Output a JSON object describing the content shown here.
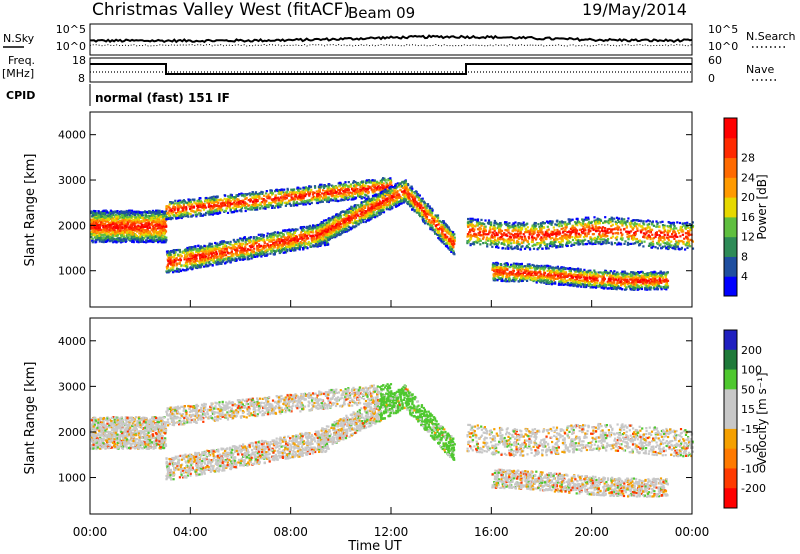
{
  "header": {
    "station": "Christmas Valley West (fitACF)",
    "beam": "Beam 09",
    "date": "19/May/2014"
  },
  "strip_panels": {
    "nsky_label": "N.Sky",
    "nsky_ticks": [
      "10^5",
      "10^0"
    ],
    "nsearch_label": "N.Search",
    "nsearch_ticks": [
      "10^5",
      "10^0"
    ],
    "freq_label_line1": "Freq.",
    "freq_label_line2": "[MHz]",
    "freq_ticks": [
      "18",
      "8"
    ],
    "nave_label": "Nave",
    "nave_ticks": [
      "60",
      "0"
    ],
    "cpid_label": "CPID",
    "cpid_text": "normal (fast) 151 IF"
  },
  "colors": {
    "power_scale": [
      "#0000ff",
      "#1f4fa0",
      "#2e8b57",
      "#5fbf3f",
      "#e6d800",
      "#ff9a00",
      "#ff6a00",
      "#ff2a00",
      "#ff0000"
    ],
    "velocity_scale": [
      "#2020c0",
      "#1f7a3a",
      "#4fc82f",
      "#c8c8c8",
      "#c8c8c8",
      "#f5a000",
      "#ff7a00",
      "#ff3a00",
      "#ff0000"
    ]
  },
  "chart_data": [
    {
      "type": "heatmap",
      "name": "power-panel",
      "ylabel": "Slant Range [km]",
      "yticks": [
        "1000",
        "2000",
        "3000",
        "4000"
      ],
      "ylim": [
        200,
        4500
      ],
      "colorbar_label": "Power [dB]",
      "colorbar_ticks": [
        "4",
        "8",
        "12",
        "16",
        "20",
        "24",
        "28"
      ]
    },
    {
      "type": "heatmap",
      "name": "velocity-panel",
      "ylabel": "Slant Range [km]",
      "yticks": [
        "1000",
        "2000",
        "3000",
        "4000"
      ],
      "ylim": [
        200,
        4500
      ],
      "colorbar_label": "Velocity [m s⁻¹]",
      "colorbar_ticks": [
        "200",
        "100",
        "50",
        "15",
        "-15",
        "-50",
        "-100",
        "-200"
      ]
    }
  ],
  "x_axis": {
    "label": "Time UT",
    "ticks": [
      "00:00",
      "04:00",
      "08:00",
      "12:00",
      "16:00",
      "20:00",
      "00:00"
    ],
    "xlim_hours": [
      0,
      24
    ]
  }
}
